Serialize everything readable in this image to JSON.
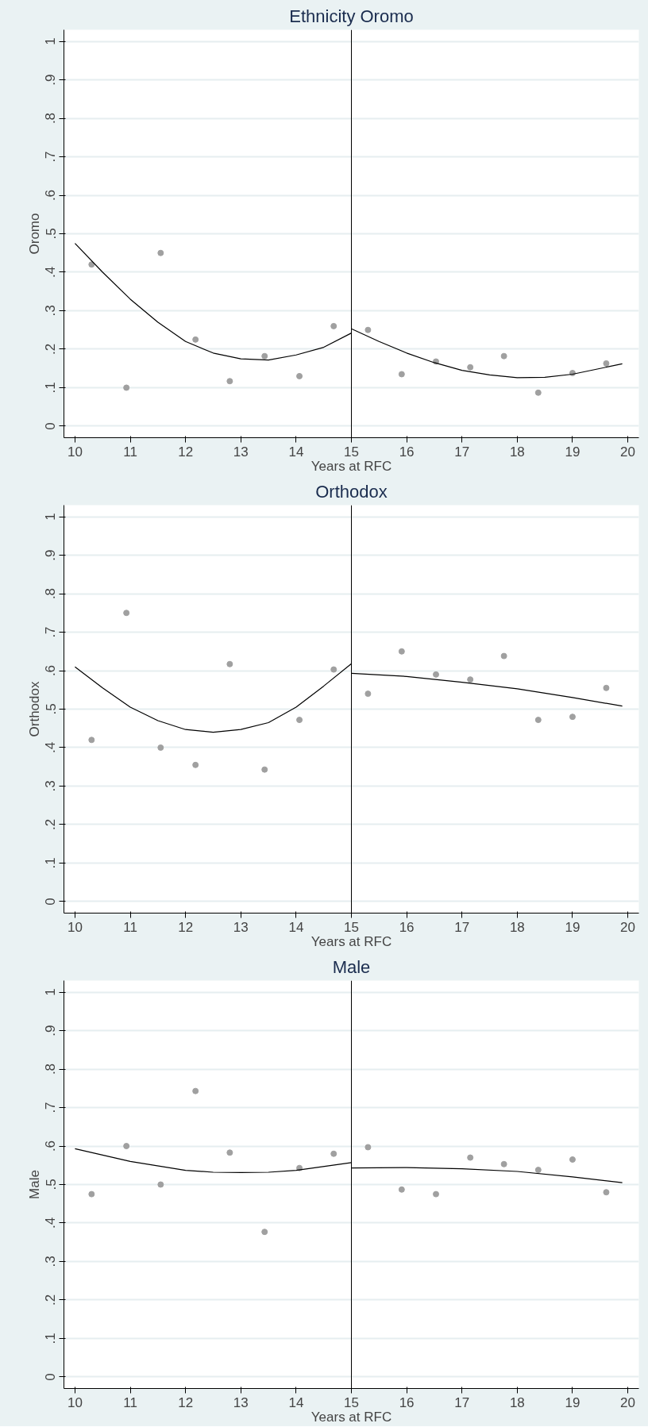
{
  "chart_data": [
    {
      "type": "scatter",
      "title": "Ethnicity Oromo",
      "xlabel": "Years at RFC",
      "ylabel": "Oromo",
      "xlim": [
        9.8,
        20.2
      ],
      "ylim": [
        -0.03,
        1.03
      ],
      "xticks": [
        10,
        11,
        12,
        13,
        14,
        15,
        16,
        17,
        18,
        19,
        20
      ],
      "yticks": [
        {
          "value": 0,
          "label": "0"
        },
        {
          "value": 0.1,
          "label": ".1"
        },
        {
          "value": 0.2,
          "label": ".2"
        },
        {
          "value": 0.3,
          "label": ".3"
        },
        {
          "value": 0.4,
          "label": ".4"
        },
        {
          "value": 0.5,
          "label": ".5"
        },
        {
          "value": 0.6,
          "label": ".6"
        },
        {
          "value": 0.7,
          "label": ".7"
        },
        {
          "value": 0.8,
          "label": ".8"
        },
        {
          "value": 0.9,
          "label": ".9"
        },
        {
          "value": 1,
          "label": "1"
        }
      ],
      "grid": "y",
      "ref_lines": [
        {
          "axis": "x",
          "value": 15,
          "color": "#000000"
        }
      ],
      "series": [
        {
          "marker": "circle",
          "color": "#a0a0a0",
          "x": [
            10.3,
            10.93,
            11.55,
            12.18,
            12.8,
            13.43,
            14.06,
            14.68,
            15.3,
            15.91,
            16.53,
            17.15,
            17.76,
            18.38,
            19.0,
            19.61
          ],
          "values": [
            0.42,
            0.1,
            0.45,
            0.225,
            0.117,
            0.182,
            0.13,
            0.26,
            0.25,
            0.135,
            0.168,
            0.153,
            0.182,
            0.087,
            0.138,
            0.163
          ]
        },
        {
          "type": "line",
          "color": "#000000",
          "x": [
            10,
            10.5,
            11,
            11.5,
            12,
            12.5,
            13,
            13.5,
            14,
            14.5,
            15
          ],
          "values": [
            0.475,
            0.4,
            0.33,
            0.27,
            0.22,
            0.19,
            0.175,
            0.172,
            0.185,
            0.205,
            0.242
          ]
        },
        {
          "type": "line",
          "color": "#000000",
          "x": [
            15,
            15.5,
            16,
            16.5,
            17,
            17.5,
            18,
            18.5,
            19,
            19.5,
            19.9
          ],
          "values": [
            0.253,
            0.22,
            0.19,
            0.165,
            0.145,
            0.133,
            0.126,
            0.127,
            0.135,
            0.15,
            0.162
          ]
        }
      ]
    },
    {
      "type": "scatter",
      "title": "Orthodox",
      "xlabel": "Years at RFC",
      "ylabel": "Orthodox",
      "xlim": [
        9.8,
        20.2
      ],
      "ylim": [
        -0.03,
        1.03
      ],
      "xticks": [
        10,
        11,
        12,
        13,
        14,
        15,
        16,
        17,
        18,
        19,
        20
      ],
      "yticks": [
        {
          "value": 0,
          "label": "0"
        },
        {
          "value": 0.1,
          "label": ".1"
        },
        {
          "value": 0.2,
          "label": ".2"
        },
        {
          "value": 0.3,
          "label": ".3"
        },
        {
          "value": 0.4,
          "label": ".4"
        },
        {
          "value": 0.5,
          "label": ".5"
        },
        {
          "value": 0.6,
          "label": ".6"
        },
        {
          "value": 0.7,
          "label": ".7"
        },
        {
          "value": 0.8,
          "label": ".8"
        },
        {
          "value": 0.9,
          "label": ".9"
        },
        {
          "value": 1,
          "label": "1"
        }
      ],
      "grid": "y",
      "ref_lines": [
        {
          "axis": "x",
          "value": 15,
          "color": "#000000"
        }
      ],
      "series": [
        {
          "marker": "circle",
          "color": "#a0a0a0",
          "x": [
            10.3,
            10.93,
            11.55,
            12.18,
            12.8,
            13.43,
            14.06,
            14.68,
            15.3,
            15.91,
            16.53,
            17.15,
            17.76,
            18.38,
            19.0,
            19.61
          ],
          "values": [
            0.42,
            0.75,
            0.4,
            0.355,
            0.617,
            0.343,
            0.472,
            0.603,
            0.54,
            0.65,
            0.59,
            0.577,
            0.638,
            0.472,
            0.48,
            0.555
          ]
        },
        {
          "type": "line",
          "color": "#000000",
          "x": [
            10,
            10.5,
            11,
            11.5,
            12,
            12.5,
            13,
            13.5,
            14,
            14.5,
            15
          ],
          "values": [
            0.61,
            0.555,
            0.505,
            0.47,
            0.447,
            0.44,
            0.447,
            0.465,
            0.505,
            0.56,
            0.618
          ]
        },
        {
          "type": "line",
          "color": "#000000",
          "x": [
            15,
            16,
            17,
            18,
            19,
            19.9
          ],
          "values": [
            0.593,
            0.585,
            0.57,
            0.553,
            0.53,
            0.508
          ]
        }
      ]
    },
    {
      "type": "scatter",
      "title": "Male",
      "xlabel": "Years at RFC",
      "ylabel": "Male",
      "xlim": [
        9.8,
        20.2
      ],
      "ylim": [
        -0.03,
        1.03
      ],
      "xticks": [
        10,
        11,
        12,
        13,
        14,
        15,
        16,
        17,
        18,
        19,
        20
      ],
      "yticks": [
        {
          "value": 0,
          "label": "0"
        },
        {
          "value": 0.1,
          "label": ".1"
        },
        {
          "value": 0.2,
          "label": ".2"
        },
        {
          "value": 0.3,
          "label": ".3"
        },
        {
          "value": 0.4,
          "label": ".4"
        },
        {
          "value": 0.5,
          "label": ".5"
        },
        {
          "value": 0.6,
          "label": ".6"
        },
        {
          "value": 0.7,
          "label": ".7"
        },
        {
          "value": 0.8,
          "label": ".8"
        },
        {
          "value": 0.9,
          "label": ".9"
        },
        {
          "value": 1,
          "label": "1"
        }
      ],
      "grid": "y",
      "ref_lines": [
        {
          "axis": "x",
          "value": 15,
          "color": "#000000"
        }
      ],
      "series": [
        {
          "marker": "circle",
          "color": "#a0a0a0",
          "x": [
            10.3,
            10.93,
            11.55,
            12.18,
            12.8,
            13.43,
            14.06,
            14.68,
            15.3,
            15.91,
            16.53,
            17.15,
            17.76,
            18.38,
            19.0,
            19.61
          ],
          "values": [
            0.475,
            0.6,
            0.5,
            0.743,
            0.583,
            0.377,
            0.543,
            0.58,
            0.597,
            0.487,
            0.475,
            0.57,
            0.553,
            0.538,
            0.565,
            0.48
          ]
        },
        {
          "type": "line",
          "color": "#000000",
          "x": [
            10,
            11,
            12,
            12.5,
            13,
            13.5,
            14,
            15
          ],
          "values": [
            0.593,
            0.56,
            0.537,
            0.532,
            0.531,
            0.532,
            0.537,
            0.557
          ]
        },
        {
          "type": "line",
          "color": "#000000",
          "x": [
            15,
            16,
            17,
            18,
            19,
            19.9
          ],
          "values": [
            0.543,
            0.544,
            0.541,
            0.534,
            0.52,
            0.505
          ]
        }
      ]
    }
  ]
}
